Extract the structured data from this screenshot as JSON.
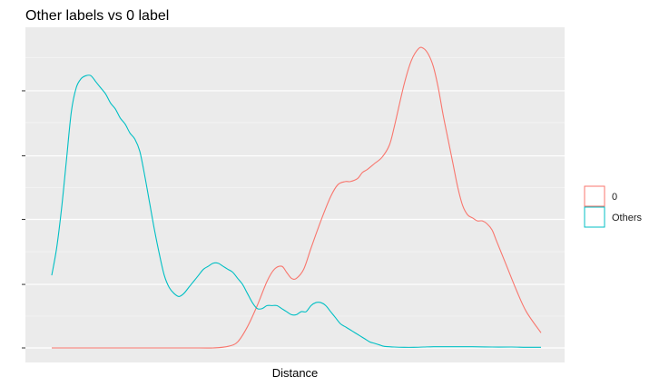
{
  "chart_data": {
    "type": "line",
    "title": "Other labels vs 0 label",
    "xlabel": "Distance",
    "ylabel": "",
    "x_tick_labels": [],
    "y_tick_labels": [],
    "xlim": [
      0,
      1
    ],
    "ylim": [
      0,
      1
    ],
    "grid": true,
    "legend_position": "right",
    "series": [
      {
        "name": "0",
        "color": "#f8766d",
        "x": [
          0.0,
          0.1,
          0.2,
          0.3,
          0.33,
          0.36,
          0.38,
          0.4,
          0.42,
          0.44,
          0.455,
          0.47,
          0.48,
          0.49,
          0.5,
          0.515,
          0.53,
          0.55,
          0.57,
          0.585,
          0.6,
          0.61,
          0.625,
          0.635,
          0.645,
          0.66,
          0.675,
          0.69,
          0.7,
          0.72,
          0.735,
          0.75,
          0.76,
          0.77,
          0.78,
          0.79,
          0.8,
          0.81,
          0.82,
          0.83,
          0.84,
          0.85,
          0.86,
          0.87,
          0.88,
          0.89,
          0.9,
          0.91,
          0.93,
          0.95,
          0.97,
          1.0
        ],
        "y": [
          0.0,
          0.0,
          0.0,
          0.0,
          0.0,
          0.005,
          0.02,
          0.07,
          0.14,
          0.22,
          0.26,
          0.27,
          0.25,
          0.23,
          0.23,
          0.26,
          0.33,
          0.42,
          0.5,
          0.54,
          0.55,
          0.55,
          0.56,
          0.58,
          0.59,
          0.61,
          0.63,
          0.67,
          0.73,
          0.87,
          0.95,
          0.99,
          0.99,
          0.97,
          0.93,
          0.86,
          0.77,
          0.69,
          0.61,
          0.53,
          0.47,
          0.44,
          0.43,
          0.42,
          0.42,
          0.41,
          0.39,
          0.35,
          0.27,
          0.19,
          0.12,
          0.05
        ]
      },
      {
        "name": "Others",
        "color": "#00bfc4",
        "x": [
          0.0,
          0.01,
          0.02,
          0.03,
          0.04,
          0.05,
          0.06,
          0.07,
          0.08,
          0.09,
          0.1,
          0.11,
          0.12,
          0.13,
          0.14,
          0.15,
          0.16,
          0.17,
          0.18,
          0.19,
          0.2,
          0.21,
          0.22,
          0.23,
          0.24,
          0.25,
          0.26,
          0.27,
          0.28,
          0.29,
          0.3,
          0.31,
          0.32,
          0.33,
          0.34,
          0.35,
          0.36,
          0.37,
          0.38,
          0.39,
          0.4,
          0.41,
          0.42,
          0.43,
          0.44,
          0.45,
          0.46,
          0.47,
          0.48,
          0.49,
          0.5,
          0.51,
          0.52,
          0.53,
          0.54,
          0.55,
          0.56,
          0.57,
          0.58,
          0.59,
          0.6,
          0.61,
          0.62,
          0.63,
          0.64,
          0.65,
          0.66,
          0.67,
          0.68,
          0.7,
          0.72,
          0.74,
          0.76,
          0.78,
          0.8,
          0.83,
          0.86,
          0.9,
          0.94,
          0.97,
          1.0
        ],
        "y": [
          0.24,
          0.33,
          0.46,
          0.62,
          0.78,
          0.86,
          0.89,
          0.9,
          0.9,
          0.88,
          0.86,
          0.84,
          0.81,
          0.79,
          0.76,
          0.74,
          0.71,
          0.69,
          0.65,
          0.57,
          0.48,
          0.39,
          0.31,
          0.24,
          0.2,
          0.18,
          0.17,
          0.18,
          0.2,
          0.22,
          0.24,
          0.26,
          0.27,
          0.28,
          0.28,
          0.27,
          0.26,
          0.25,
          0.23,
          0.21,
          0.18,
          0.15,
          0.13,
          0.13,
          0.14,
          0.14,
          0.14,
          0.13,
          0.12,
          0.11,
          0.11,
          0.12,
          0.12,
          0.14,
          0.15,
          0.15,
          0.14,
          0.12,
          0.1,
          0.08,
          0.07,
          0.06,
          0.05,
          0.04,
          0.03,
          0.02,
          0.015,
          0.01,
          0.005,
          0.003,
          0.002,
          0.002,
          0.003,
          0.004,
          0.004,
          0.004,
          0.004,
          0.003,
          0.003,
          0.002,
          0.002
        ]
      }
    ]
  }
}
